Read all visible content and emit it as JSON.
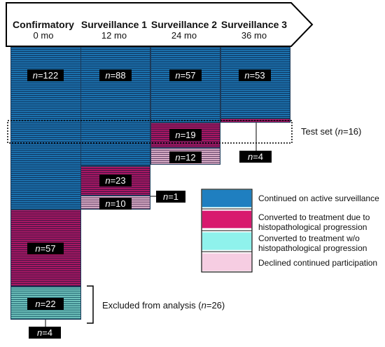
{
  "header": {
    "columns": [
      {
        "name": "Confirmatory",
        "time": "0 mo"
      },
      {
        "name": "Surveillance 1",
        "time": "12 mo"
      },
      {
        "name": "Surveillance 2",
        "time": "24 mo"
      },
      {
        "name": "Surveillance 3",
        "time": "36 mo"
      }
    ]
  },
  "counts": {
    "conf_surv": "=122",
    "s1_surv": "=88",
    "s2_surv": "=57",
    "s3_surv": "=53",
    "s2_prog": "=19",
    "s2_declined": "=12",
    "s3_out": "=4",
    "s1_prog": "=23",
    "s1_declined": "=10",
    "s1_out": "=1",
    "conf_prog": "=57",
    "conf_treat_no_prog": "=22",
    "conf_out": "=4"
  },
  "n_symbol": "n",
  "test_set": {
    "prefix": "Test set (",
    "n": "n",
    "suffix": "=16)"
  },
  "excluded": {
    "prefix": "Excluded from analysis (",
    "n": "n",
    "suffix": "=26)"
  },
  "legend": [
    {
      "label": "Continued on active surveillance",
      "color": "#1f7fc0"
    },
    {
      "label": "Converted to treatment due to histopathological progression",
      "color": "#c1186a"
    },
    {
      "label": "Converted to treatment w/o histopathological progression",
      "color": "#7fd6cc"
    },
    {
      "label": "Declined continued participation",
      "color": "#f3c5dc"
    }
  ]
}
